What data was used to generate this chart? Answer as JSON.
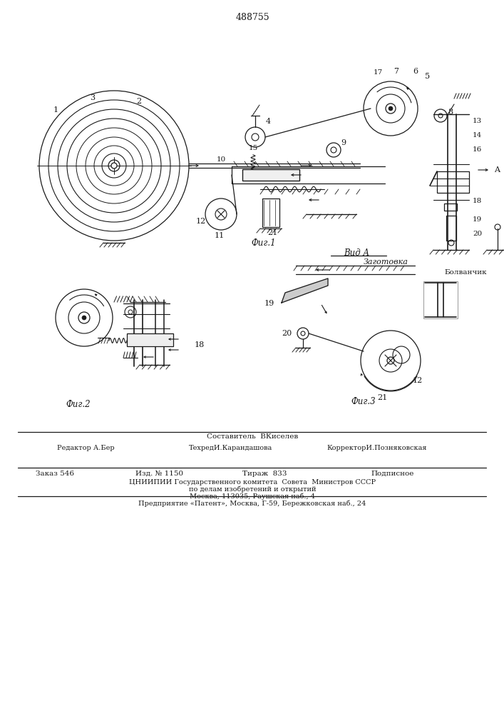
{
  "patent_number": "488755",
  "bg": "#f5f5f0",
  "lc": "#1a1a1a",
  "fig1_label": "Фиг.1",
  "fig2_label": "Фиг.2",
  "fig3_label": "Фиг.3",
  "vidA_label": "Вид A",
  "zagotovka_label": "Заготовка",
  "bolvan_label": "Болванчик",
  "footer_sostavitel": "Составитель  ВКиселев",
  "footer_redaktor": "Редактор А.Бер",
  "footer_tehred": "ТехредИ.Карандашова",
  "footer_korrektor": "КорректорИ.Позняковская",
  "footer_zakaz": "Заказ 546",
  "footer_izd": "Изд. № 1150",
  "footer_tirazh": "Тираж  833",
  "footer_podpisnoe": "Подписное",
  "footer_tsniipii": "ЦНИИПИИ Государственного комитета  Совета  Министров СССР",
  "footer_po_delam": "по делам изобретений и открытий",
  "footer_moskva": "Москва, 113035, Раушская наб., 4",
  "footer_predpr": "Предприятие «Патент», Москва, Г-59, Бережковская наб., 24"
}
